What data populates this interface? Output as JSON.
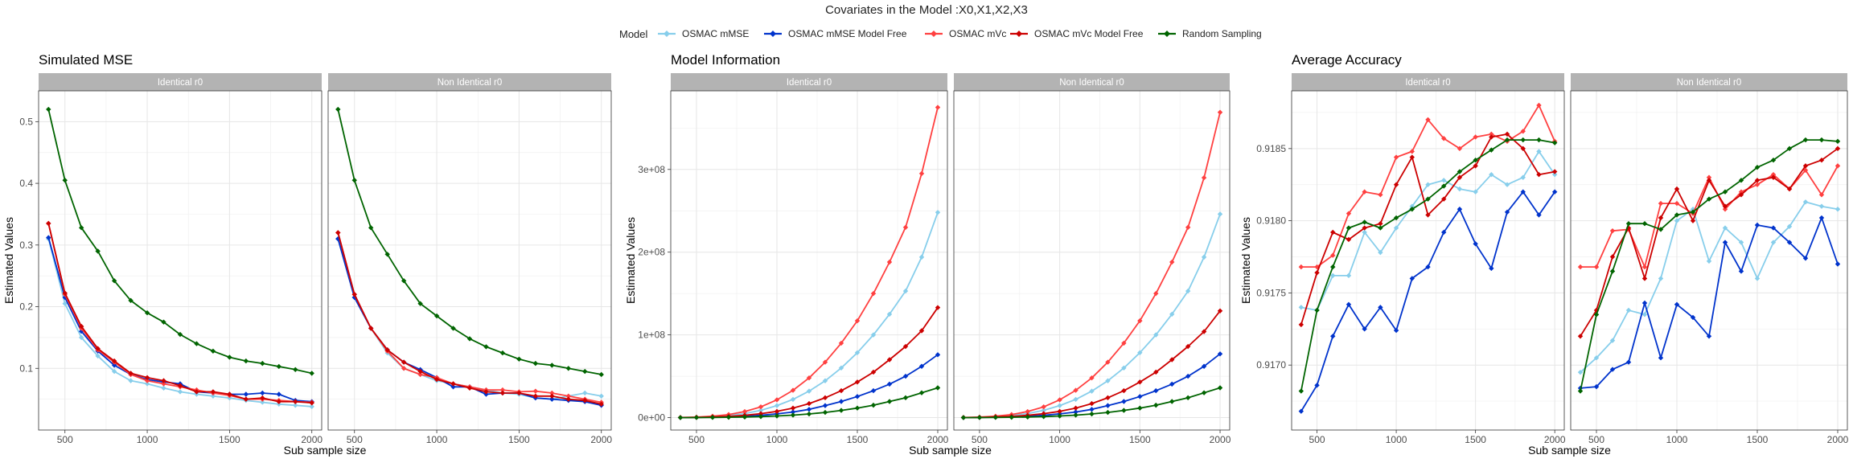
{
  "suptitle": "Covariates in the Model :X0,X1,X2,X3",
  "legend": {
    "title": "Model",
    "entries": [
      {
        "name": "OSMAC mMSE",
        "color": "#87CEEB"
      },
      {
        "name": "OSMAC mMSE Model Free",
        "color": "#0033CC"
      },
      {
        "name": "OSMAC mVc",
        "color": "#FF4040"
      },
      {
        "name": "OSMAC mVc Model Free",
        "color": "#CC0000"
      },
      {
        "name": "Random Sampling",
        "color": "#006400"
      }
    ]
  },
  "chart_data": [
    {
      "type": "line",
      "title": "Simulated MSE",
      "xlabel": "Sub sample size",
      "ylabel": "Estimated Values",
      "facets": [
        "Identical r0",
        "Non Identical r0"
      ],
      "x": [
        400,
        500,
        600,
        700,
        800,
        900,
        1000,
        1100,
        1200,
        1300,
        1400,
        1500,
        1600,
        1700,
        1800,
        1900,
        2000
      ],
      "xlim": [
        340,
        2060
      ],
      "xticks": [
        500,
        1000,
        1500,
        2000
      ],
      "ylim": [
        0,
        0.55
      ],
      "yticks": [
        0.1,
        0.2,
        0.3,
        0.4,
        0.5
      ],
      "ytick_labels": [
        "0.1",
        "0.2",
        "0.3",
        "0.4",
        "0.5"
      ],
      "grid": true,
      "panels": [
        {
          "facet": "Identical r0",
          "series": [
            {
              "name": "OSMAC mMSE",
              "values": [
                0.31,
                0.205,
                0.15,
                0.12,
                0.095,
                0.08,
                0.075,
                0.068,
                0.062,
                0.058,
                0.055,
                0.052,
                0.048,
                0.045,
                0.042,
                0.04,
                0.038
              ]
            },
            {
              "name": "OSMAC mMSE Model Free",
              "values": [
                0.312,
                0.215,
                0.16,
                0.128,
                0.105,
                0.09,
                0.082,
                0.078,
                0.075,
                0.062,
                0.06,
                0.058,
                0.058,
                0.06,
                0.058,
                0.048,
                0.046
              ]
            },
            {
              "name": "OSMAC mVc",
              "values": [
                0.335,
                0.22,
                0.165,
                0.13,
                0.11,
                0.09,
                0.08,
                0.075,
                0.07,
                0.065,
                0.06,
                0.056,
                0.05,
                0.05,
                0.048,
                0.046,
                0.045
              ]
            },
            {
              "name": "OSMAC mVc Model Free",
              "values": [
                0.335,
                0.222,
                0.168,
                0.132,
                0.112,
                0.092,
                0.085,
                0.08,
                0.072,
                0.062,
                0.062,
                0.058,
                0.05,
                0.052,
                0.046,
                0.046,
                0.044
              ]
            },
            {
              "name": "Random Sampling",
              "values": [
                0.52,
                0.405,
                0.328,
                0.29,
                0.242,
                0.21,
                0.19,
                0.175,
                0.155,
                0.14,
                0.128,
                0.118,
                0.112,
                0.108,
                0.103,
                0.098,
                0.092
              ]
            }
          ]
        },
        {
          "facet": "Non Identical r0",
          "series": [
            {
              "name": "OSMAC mMSE",
              "values": [
                0.31,
                0.215,
                0.165,
                0.125,
                0.1,
                0.09,
                0.08,
                0.075,
                0.07,
                0.065,
                0.06,
                0.058,
                0.052,
                0.05,
                0.055,
                0.06,
                0.055
              ]
            },
            {
              "name": "OSMAC mMSE Model Free",
              "values": [
                0.31,
                0.215,
                0.165,
                0.13,
                0.11,
                0.098,
                0.085,
                0.07,
                0.07,
                0.058,
                0.06,
                0.06,
                0.052,
                0.05,
                0.048,
                0.046,
                0.04
              ]
            },
            {
              "name": "OSMAC mVc",
              "values": [
                0.32,
                0.22,
                0.165,
                0.128,
                0.1,
                0.09,
                0.085,
                0.075,
                0.07,
                0.065,
                0.065,
                0.062,
                0.063,
                0.06,
                0.055,
                0.05,
                0.045
              ]
            },
            {
              "name": "OSMAC mVc Model Free",
              "values": [
                0.32,
                0.22,
                0.165,
                0.13,
                0.11,
                0.095,
                0.082,
                0.075,
                0.068,
                0.062,
                0.06,
                0.06,
                0.055,
                0.055,
                0.05,
                0.048,
                0.042
              ]
            },
            {
              "name": "Random Sampling",
              "values": [
                0.52,
                0.405,
                0.328,
                0.285,
                0.242,
                0.205,
                0.185,
                0.165,
                0.148,
                0.135,
                0.125,
                0.115,
                0.108,
                0.105,
                0.1,
                0.095,
                0.09
              ]
            }
          ]
        }
      ]
    },
    {
      "type": "line",
      "title": "Model Information",
      "xlabel": "Sub sample size",
      "ylabel": "Estimated Values",
      "facets": [
        "Identical r0",
        "Non Identical r0"
      ],
      "x": [
        400,
        500,
        600,
        700,
        800,
        900,
        1000,
        1100,
        1200,
        1300,
        1400,
        1500,
        1600,
        1700,
        1800,
        1900,
        2000
      ],
      "xlim": [
        340,
        2060
      ],
      "xticks": [
        500,
        1000,
        1500,
        2000
      ],
      "ylim": [
        -15000000,
        395000000
      ],
      "yticks": [
        0,
        100000000,
        200000000,
        300000000
      ],
      "ytick_labels": [
        "0e+00",
        "1e+08",
        "2e+08",
        "3e+08"
      ],
      "grid": true,
      "panels": [
        {
          "facet": "Identical r0",
          "series": [
            {
              "name": "OSMAC mMSE",
              "values": [
                100000,
                400000,
                1100000,
                2500000,
                4900000,
                8800000,
                14500000,
                22000000,
                32000000,
                44500000,
                60000000,
                78500000,
                100000000,
                125000000,
                153000000,
                194000000,
                248000000
              ]
            },
            {
              "name": "OSMAC mMSE Model Free",
              "values": [
                0,
                200000,
                500000,
                900000,
                1600000,
                2800000,
                4500000,
                6800000,
                10000000,
                14500000,
                19500000,
                25500000,
                32500000,
                40500000,
                50000000,
                62000000,
                76000000
              ]
            },
            {
              "name": "OSMAC mVc",
              "values": [
                200000,
                600000,
                1700000,
                3700000,
                7300000,
                13000000,
                21500000,
                33000000,
                48000000,
                67000000,
                90000000,
                117000000,
                150000000,
                188000000,
                230000000,
                295000000,
                375000000
              ]
            },
            {
              "name": "OSMAC mVc Model Free",
              "values": [
                100000,
                300000,
                800000,
                1500000,
                2800000,
                4800000,
                7500000,
                11500000,
                17000000,
                24000000,
                32500000,
                43000000,
                55000000,
                70000000,
                86000000,
                105000000,
                133000000
              ]
            },
            {
              "name": "Random Sampling",
              "values": [
                0,
                100000,
                200000,
                400000,
                700000,
                1200000,
                2000000,
                3000000,
                4400000,
                6300000,
                8700000,
                11500000,
                15000000,
                19500000,
                24000000,
                30000000,
                36000000
              ]
            }
          ]
        },
        {
          "facet": "Non Identical r0",
          "series": [
            {
              "name": "OSMAC mMSE",
              "values": [
                100000,
                400000,
                1100000,
                2500000,
                4900000,
                8800000,
                14500000,
                22000000,
                32000000,
                44500000,
                60000000,
                78500000,
                100000000,
                125000000,
                153000000,
                194000000,
                246000000
              ]
            },
            {
              "name": "OSMAC mMSE Model Free",
              "values": [
                0,
                200000,
                500000,
                900000,
                1600000,
                2800000,
                4500000,
                6800000,
                10000000,
                14500000,
                19500000,
                25500000,
                32500000,
                40500000,
                50000000,
                62000000,
                77000000
              ]
            },
            {
              "name": "OSMAC mVc",
              "values": [
                200000,
                600000,
                1700000,
                3700000,
                7300000,
                13000000,
                21500000,
                33000000,
                48000000,
                67000000,
                90000000,
                117000000,
                150000000,
                188000000,
                230000000,
                290000000,
                369000000
              ]
            },
            {
              "name": "OSMAC mVc Model Free",
              "values": [
                100000,
                300000,
                800000,
                1500000,
                2800000,
                4800000,
                7500000,
                11500000,
                17000000,
                24000000,
                32500000,
                43000000,
                55000000,
                70000000,
                86000000,
                104000000,
                129000000
              ]
            },
            {
              "name": "Random Sampling",
              "values": [
                0,
                100000,
                200000,
                400000,
                700000,
                1200000,
                2000000,
                3000000,
                4400000,
                6300000,
                8700000,
                11500000,
                15000000,
                19500000,
                24000000,
                30000000,
                36000000
              ]
            }
          ]
        }
      ]
    },
    {
      "type": "line",
      "title": "Average Accuracy",
      "xlabel": "Sub sample size",
      "ylabel": "Estimated Values",
      "facets": [
        "Identical r0",
        "Non Identical r0"
      ],
      "x": [
        400,
        500,
        600,
        700,
        800,
        900,
        1000,
        1100,
        1200,
        1300,
        1400,
        1500,
        1600,
        1700,
        1800,
        1900,
        2000
      ],
      "xlim": [
        340,
        2060
      ],
      "xticks": [
        500,
        1000,
        1500,
        2000
      ],
      "ylim": [
        0.91655,
        0.9189
      ],
      "yticks": [
        0.917,
        0.9175,
        0.918,
        0.9185
      ],
      "ytick_labels": [
        "0.9170",
        "0.9175",
        "0.9180",
        "0.9185"
      ],
      "grid": true,
      "panels": [
        {
          "facet": "Identical r0",
          "series": [
            {
              "name": "OSMAC mMSE",
              "values": [
                0.9174,
                0.91738,
                0.91762,
                0.91762,
                0.91792,
                0.91778,
                0.91795,
                0.9181,
                0.91825,
                0.91828,
                0.91822,
                0.9182,
                0.91832,
                0.91825,
                0.9183,
                0.91848,
                0.91832
              ]
            },
            {
              "name": "OSMAC mMSE Model Free",
              "values": [
                0.91668,
                0.91686,
                0.9172,
                0.91742,
                0.91725,
                0.9174,
                0.91724,
                0.9176,
                0.91768,
                0.91792,
                0.91808,
                0.91784,
                0.91767,
                0.91806,
                0.9182,
                0.91804,
                0.9182
              ]
            },
            {
              "name": "OSMAC mVc",
              "values": [
                0.91768,
                0.91768,
                0.91776,
                0.91805,
                0.9182,
                0.91818,
                0.91844,
                0.91848,
                0.9187,
                0.91857,
                0.9185,
                0.91858,
                0.9186,
                0.91855,
                0.91862,
                0.9188,
                0.91855
              ]
            },
            {
              "name": "OSMAC mVc Model Free",
              "values": [
                0.91728,
                0.91764,
                0.91792,
                0.91787,
                0.91795,
                0.91798,
                0.91825,
                0.91844,
                0.91804,
                0.91815,
                0.9183,
                0.91838,
                0.91858,
                0.9186,
                0.9185,
                0.91832,
                0.91834
              ]
            },
            {
              "name": "Random Sampling",
              "values": [
                0.91682,
                0.91738,
                0.91768,
                0.91795,
                0.91799,
                0.91795,
                0.91802,
                0.91808,
                0.91815,
                0.91824,
                0.91834,
                0.91842,
                0.91849,
                0.91856,
                0.91856,
                0.91856,
                0.91854
              ]
            }
          ]
        },
        {
          "facet": "Non Identical r0",
          "series": [
            {
              "name": "OSMAC mMSE",
              "values": [
                0.91695,
                0.91705,
                0.91717,
                0.91738,
                0.91735,
                0.9176,
                0.918,
                0.91808,
                0.91772,
                0.91795,
                0.91785,
                0.9176,
                0.91785,
                0.91796,
                0.91813,
                0.9181,
                0.91808
              ]
            },
            {
              "name": "OSMAC mMSE Model Free",
              "values": [
                0.91684,
                0.91685,
                0.91697,
                0.91702,
                0.91743,
                0.91705,
                0.91742,
                0.91733,
                0.9172,
                0.91785,
                0.91765,
                0.91797,
                0.91795,
                0.91785,
                0.91774,
                0.91802,
                0.9177
              ]
            },
            {
              "name": "OSMAC mVc",
              "values": [
                0.91768,
                0.91768,
                0.91793,
                0.91794,
                0.91768,
                0.91812,
                0.91812,
                0.91805,
                0.9183,
                0.91808,
                0.9182,
                0.91825,
                0.91832,
                0.91822,
                0.91835,
                0.91818,
                0.91838
              ]
            },
            {
              "name": "OSMAC mVc Model Free",
              "values": [
                0.9172,
                0.91738,
                0.91775,
                0.91795,
                0.9176,
                0.91802,
                0.91822,
                0.918,
                0.91828,
                0.9181,
                0.91818,
                0.91828,
                0.9183,
                0.91822,
                0.91838,
                0.91842,
                0.9185
              ]
            },
            {
              "name": "Random Sampling",
              "values": [
                0.91682,
                0.91735,
                0.91765,
                0.91798,
                0.91798,
                0.91794,
                0.91804,
                0.91806,
                0.91815,
                0.9182,
                0.91828,
                0.91837,
                0.91842,
                0.9185,
                0.91856,
                0.91856,
                0.91855
              ]
            }
          ]
        }
      ]
    }
  ]
}
